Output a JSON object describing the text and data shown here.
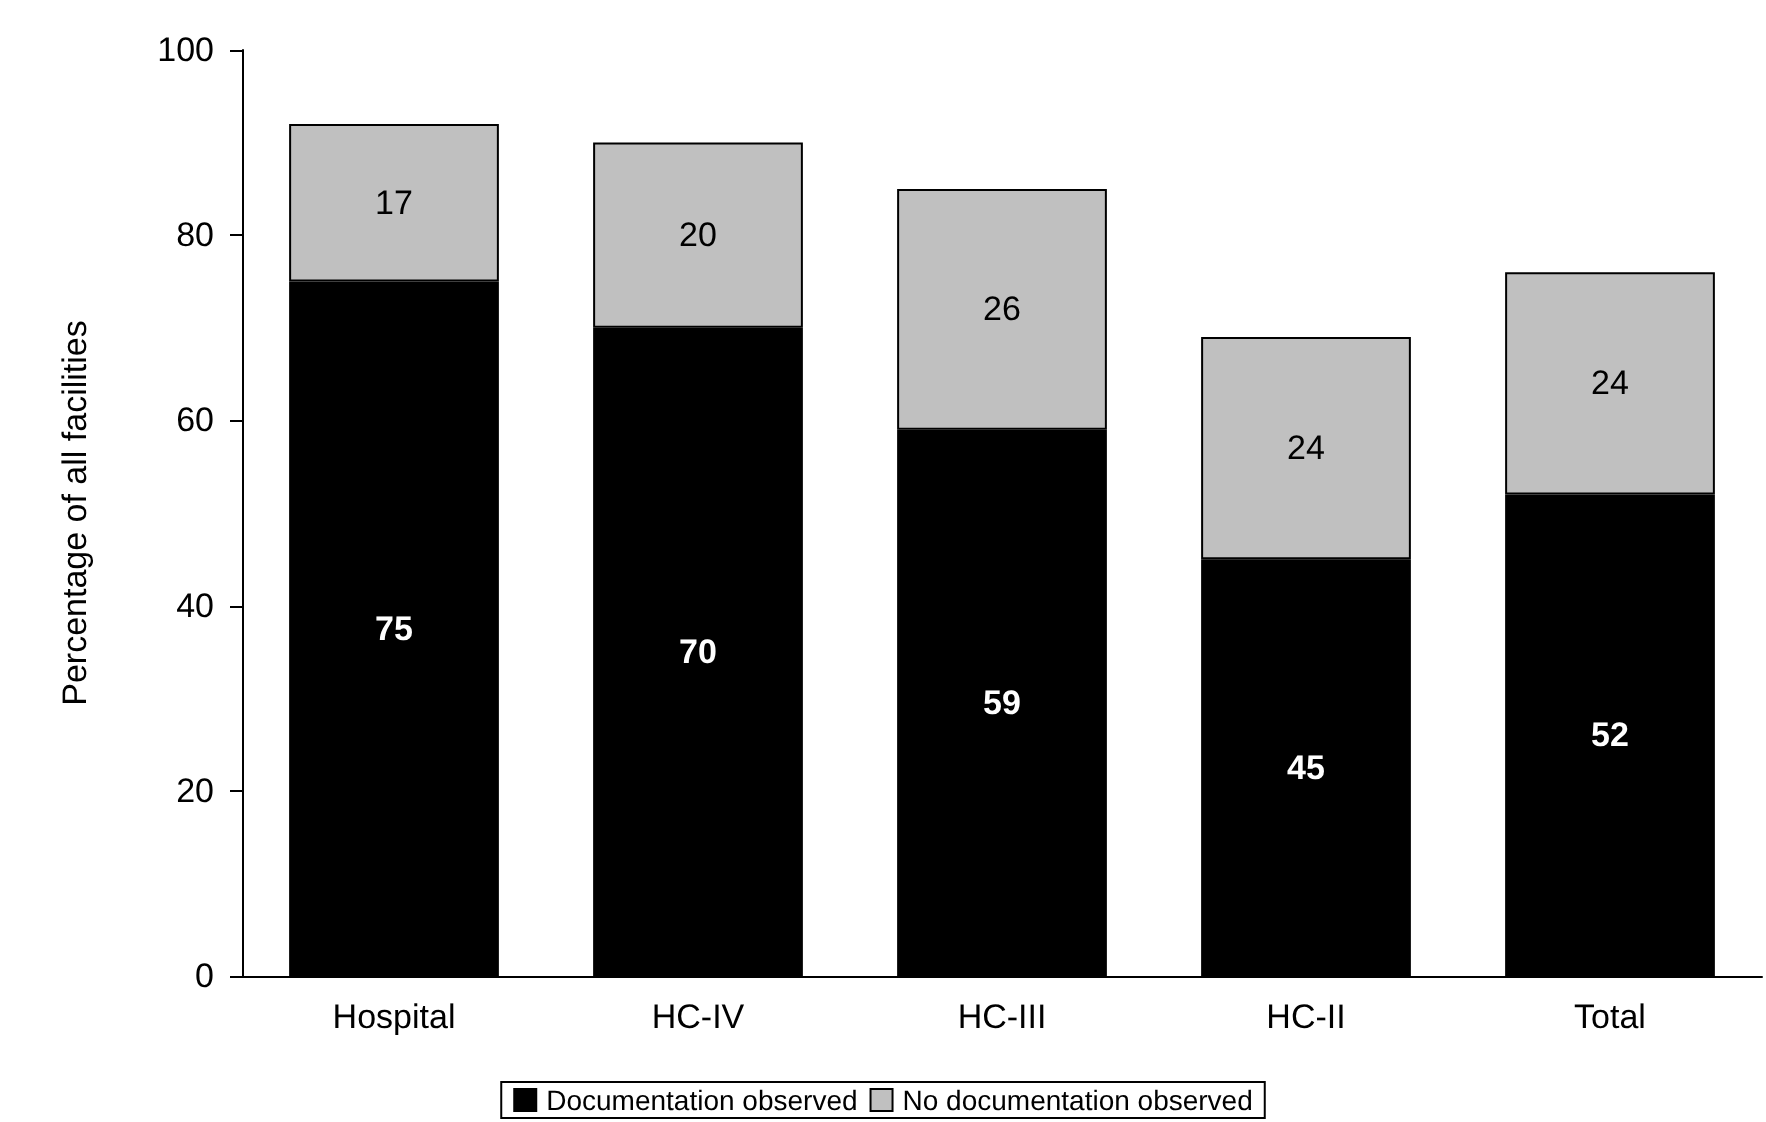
{
  "chart_data": {
    "type": "bar",
    "stacked": true,
    "ylabel": "Percentage of all facilities",
    "categories": [
      "Hospital",
      "HC-IV",
      "HC-III",
      "HC-II",
      "Total"
    ],
    "series": [
      {
        "name": "Documentation observed",
        "color": "#000000",
        "values": [
          75,
          70,
          59,
          45,
          52
        ]
      },
      {
        "name": "No documentation observed",
        "color": "#c0c0c0",
        "values": [
          17,
          20,
          26,
          24,
          24
        ]
      }
    ],
    "ylim": [
      0,
      100
    ],
    "yticks": [
      0,
      20,
      40,
      60,
      80,
      100
    ],
    "grid": false,
    "legend": "bottom",
    "data_labels": true
  }
}
